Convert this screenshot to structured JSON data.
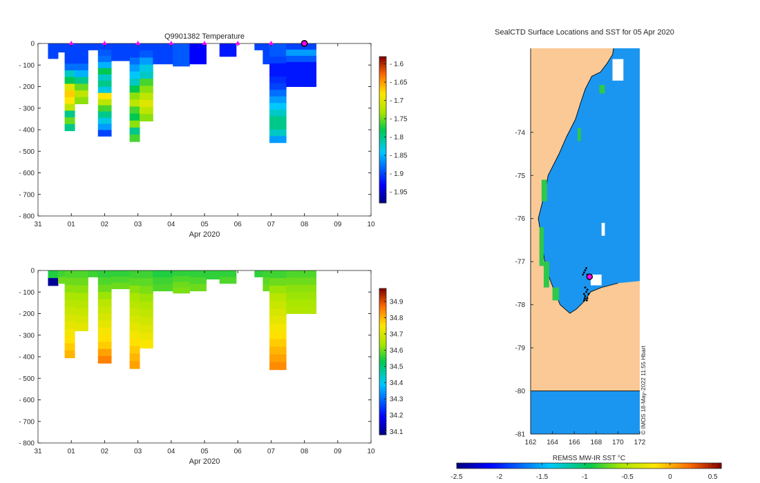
{
  "colors": {
    "land": "#fbc996",
    "ocean": "#1a96f0",
    "profile_marker": "#ff00ff",
    "axis": "#262626"
  },
  "chart_data": [
    {
      "type": "heatmap",
      "title": "Q9901382  Temperature",
      "xlabel": "Apr 2020",
      "ylabel": "",
      "x_ticks": [
        "31",
        "01",
        "02",
        "03",
        "04",
        "05",
        "06",
        "07",
        "08",
        "09",
        "10"
      ],
      "x_range_days": [
        0,
        10
      ],
      "y_ticks": [
        0,
        -100,
        -200,
        -300,
        -400,
        -500,
        -600,
        -700,
        -800
      ],
      "ylim": [
        -800,
        0
      ],
      "colorbar": {
        "min": -1.98,
        "max": -1.58,
        "ticks": [
          -1.6,
          -1.65,
          -1.7,
          -1.75,
          -1.8,
          -1.85,
          -1.9,
          -1.95
        ]
      },
      "profile_markers_day": [
        1,
        2,
        3,
        4,
        5,
        6,
        7
      ],
      "current_marker_day": 8,
      "profiles": [
        {
          "x0": 0.3,
          "x1": 0.6,
          "depth": 70,
          "values": [
            -1.9,
            -1.9
          ]
        },
        {
          "x0": 0.6,
          "x1": 0.8,
          "depth": 40,
          "values": [
            -1.9
          ]
        },
        {
          "x0": 0.8,
          "x1": 1.1,
          "depth": 405,
          "values": [
            -1.9,
            -1.9,
            -1.9,
            -1.88,
            -1.82,
            -1.78,
            -1.7,
            -1.67,
            -1.68,
            -1.72,
            -1.8,
            -1.75,
            -1.8
          ]
        },
        {
          "x0": 1.1,
          "x1": 1.5,
          "depth": 280,
          "values": [
            -1.9,
            -1.9,
            -1.9,
            -1.88,
            -1.85,
            -1.8,
            -1.75,
            -1.72,
            -1.74
          ]
        },
        {
          "x0": 1.5,
          "x1": 1.8,
          "depth": 30,
          "values": [
            -1.9
          ]
        },
        {
          "x0": 1.8,
          "x1": 2.2,
          "depth": 430,
          "values": [
            -1.9,
            -1.89,
            -1.88,
            -1.85,
            -1.78,
            -1.82,
            -1.8,
            -1.83,
            -1.68,
            -1.72,
            -1.76,
            -1.8,
            -1.83,
            -1.86,
            -1.9
          ]
        },
        {
          "x0": 2.2,
          "x1": 2.75,
          "depth": 80,
          "values": [
            -1.9,
            -1.9,
            -1.9
          ]
        },
        {
          "x0": 2.75,
          "x1": 3.05,
          "depth": 455,
          "values": [
            -1.9,
            -1.9,
            -1.88,
            -1.86,
            -1.84,
            -1.82,
            -1.78,
            -1.74,
            -1.72,
            -1.76,
            -1.78,
            -1.74,
            -1.8,
            -1.76
          ]
        },
        {
          "x0": 3.05,
          "x1": 3.45,
          "depth": 360,
          "values": [
            -1.9,
            -1.89,
            -1.86,
            -1.83,
            -1.82,
            -1.76,
            -1.74,
            -1.72,
            -1.7,
            -1.72,
            -1.74
          ]
        },
        {
          "x0": 3.45,
          "x1": 4.05,
          "depth": 95,
          "values": [
            -1.9,
            -1.9,
            -1.9
          ]
        },
        {
          "x0": 4.05,
          "x1": 4.55,
          "depth": 105,
          "values": [
            -1.89,
            -1.89,
            -1.89,
            -1.89
          ]
        },
        {
          "x0": 4.55,
          "x1": 5.05,
          "depth": 95,
          "values": [
            -1.93,
            -1.93,
            -1.93
          ]
        },
        {
          "x0": 5.45,
          "x1": 5.95,
          "depth": 60,
          "values": [
            -1.92,
            -1.92
          ]
        },
        {
          "x0": 6.5,
          "x1": 6.75,
          "depth": 30,
          "values": [
            -1.9
          ]
        },
        {
          "x0": 6.75,
          "x1": 6.95,
          "depth": 95,
          "values": [
            -1.9,
            -1.9,
            -1.9
          ]
        },
        {
          "x0": 6.95,
          "x1": 7.45,
          "depth": 460,
          "values": [
            -1.89,
            -1.89,
            -1.9,
            -1.92,
            -1.92,
            -1.91,
            -1.9,
            -1.88,
            -1.86,
            -1.84,
            -1.82,
            -1.8,
            -1.8,
            -1.82,
            -1.86
          ]
        },
        {
          "x0": 7.45,
          "x1": 8.35,
          "depth": 200,
          "values": [
            -1.9,
            -1.86,
            -1.89,
            -1.92,
            -1.92,
            -1.92,
            -1.92
          ]
        }
      ]
    },
    {
      "type": "heatmap",
      "title": "",
      "xlabel": "Apr 2020",
      "ylabel": "",
      "x_ticks": [
        "31",
        "01",
        "02",
        "03",
        "04",
        "05",
        "06",
        "07",
        "08",
        "09",
        "10"
      ],
      "x_range_days": [
        0,
        10
      ],
      "y_ticks": [
        0,
        -100,
        -200,
        -300,
        -400,
        -500,
        -600,
        -700,
        -800
      ],
      "ylim": [
        -800,
        0
      ],
      "colorbar": {
        "min": 34.08,
        "max": 34.98,
        "ticks": [
          34.1,
          34.2,
          34.3,
          34.4,
          34.5,
          34.6,
          34.7,
          34.8,
          34.9
        ]
      },
      "profiles": [
        {
          "x0": 0.3,
          "x1": 0.6,
          "depth": 70,
          "values": [
            34.55,
            34.1
          ]
        },
        {
          "x0": 0.6,
          "x1": 0.8,
          "depth": 60,
          "values": [
            34.57,
            34.6
          ]
        },
        {
          "x0": 0.8,
          "x1": 1.1,
          "depth": 405,
          "values": [
            34.58,
            34.6,
            34.62,
            34.64,
            34.66,
            34.68,
            34.7,
            34.72,
            34.74,
            34.76,
            34.78,
            34.8
          ]
        },
        {
          "x0": 1.1,
          "x1": 1.5,
          "depth": 280,
          "values": [
            34.58,
            34.6,
            34.62,
            34.64,
            34.66,
            34.68,
            34.7,
            34.72
          ]
        },
        {
          "x0": 1.5,
          "x1": 1.8,
          "depth": 30,
          "values": [
            34.57
          ]
        },
        {
          "x0": 1.8,
          "x1": 2.2,
          "depth": 430,
          "values": [
            34.56,
            34.58,
            34.6,
            34.63,
            34.66,
            34.68,
            34.7,
            34.72,
            34.74,
            34.76,
            34.78,
            34.82,
            34.85
          ]
        },
        {
          "x0": 2.2,
          "x1": 2.75,
          "depth": 85,
          "values": [
            34.56,
            34.58,
            34.6
          ]
        },
        {
          "x0": 2.75,
          "x1": 3.05,
          "depth": 455,
          "values": [
            34.57,
            34.59,
            34.62,
            34.64,
            34.66,
            34.68,
            34.7,
            34.72,
            34.74,
            34.76,
            34.78,
            34.8,
            34.82
          ]
        },
        {
          "x0": 3.05,
          "x1": 3.45,
          "depth": 360,
          "values": [
            34.57,
            34.59,
            34.61,
            34.63,
            34.65,
            34.67,
            34.69,
            34.71,
            34.73,
            34.75
          ]
        },
        {
          "x0": 3.45,
          "x1": 4.05,
          "depth": 95,
          "values": [
            34.55,
            34.57,
            34.58
          ]
        },
        {
          "x0": 4.05,
          "x1": 4.55,
          "depth": 105,
          "values": [
            34.56,
            34.58,
            34.6,
            34.61
          ]
        },
        {
          "x0": 4.55,
          "x1": 5.05,
          "depth": 95,
          "values": [
            34.56,
            34.58,
            34.6
          ]
        },
        {
          "x0": 5.05,
          "x1": 5.45,
          "depth": 40,
          "values": [
            34.56
          ]
        },
        {
          "x0": 5.45,
          "x1": 5.95,
          "depth": 60,
          "values": [
            34.56,
            34.58
          ]
        },
        {
          "x0": 6.5,
          "x1": 6.75,
          "depth": 30,
          "values": [
            34.56
          ]
        },
        {
          "x0": 6.75,
          "x1": 6.95,
          "depth": 95,
          "values": [
            34.57,
            34.59,
            34.6
          ]
        },
        {
          "x0": 6.95,
          "x1": 7.45,
          "depth": 460,
          "values": [
            34.57,
            34.6,
            34.63,
            34.66,
            34.68,
            34.7,
            34.72,
            34.74,
            34.76,
            34.78,
            34.8,
            34.82,
            34.84
          ]
        },
        {
          "x0": 7.45,
          "x1": 8.35,
          "depth": 200,
          "values": [
            34.58,
            34.6,
            34.62,
            34.63,
            34.64,
            34.65
          ]
        }
      ]
    },
    {
      "type": "heatmap",
      "title": "SealCTD Surface Locations and SST for 05 Apr 2020",
      "xlabel": "",
      "ylabel": "",
      "x_ticks": [
        162,
        164,
        166,
        168,
        170,
        172
      ],
      "xlim": [
        162,
        172
      ],
      "y_ticks": [
        -74,
        -75,
        -76,
        -77,
        -78,
        -79,
        -80,
        -81
      ],
      "ylim": [
        -81,
        -72.05
      ],
      "colorbar": {
        "label": "REMSS MW-IR SST °C",
        "min": -2.5,
        "max": 0.6,
        "ticks": [
          "-2.5",
          "-2",
          "-1.5",
          "-1",
          "-0.5",
          "0",
          "0.5"
        ]
      },
      "current_location": {
        "lon": 167.4,
        "lat": -77.35
      },
      "track_points": [
        [
          167.0,
          -77.2
        ],
        [
          166.9,
          -77.25
        ],
        [
          167.1,
          -77.15
        ],
        [
          167.2,
          -77.3
        ],
        [
          166.8,
          -77.3
        ],
        [
          167.3,
          -77.4
        ],
        [
          166.9,
          -77.75
        ],
        [
          167.0,
          -77.8
        ],
        [
          167.1,
          -77.7
        ],
        [
          167.2,
          -77.85
        ],
        [
          167.3,
          -77.75
        ],
        [
          166.9,
          -77.9
        ],
        [
          167.0,
          -77.6
        ],
        [
          167.2,
          -77.65
        ],
        [
          166.95,
          -77.85
        ],
        [
          167.15,
          -77.9
        ]
      ],
      "credit": "© IMOS 18-May-2022 11:55 Hbart"
    }
  ]
}
